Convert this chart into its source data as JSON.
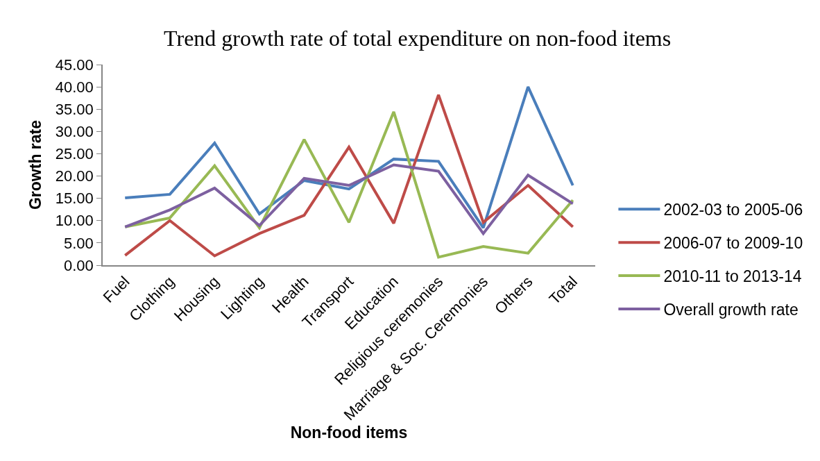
{
  "chart_data": {
    "type": "line",
    "title": "Trend growth rate of total expenditure on non-food items",
    "xlabel": "Non-food items",
    "ylabel": "Growth rate",
    "categories": [
      "Fuel",
      "Clothing",
      "Housing",
      "Lighting",
      "Health",
      "Transport",
      "Education",
      "Religious ceremonies",
      "Marriage & Soc. Ceremonies",
      "Others",
      "Total"
    ],
    "series": [
      {
        "name": "2002-03 to 2005-06",
        "color": "#4a7ebb",
        "values": [
          15.1,
          15.9,
          27.4,
          11.5,
          19.0,
          17.1,
          23.8,
          23.3,
          8.4,
          40.0,
          17.9
        ]
      },
      {
        "name": "2006-07 to 2009-10",
        "color": "#be4b48",
        "values": [
          2.2,
          10.0,
          2.1,
          7.1,
          11.2,
          26.5,
          9.4,
          38.2,
          9.6,
          17.9,
          8.6
        ]
      },
      {
        "name": "2010-11 to 2013-14",
        "color": "#98b954",
        "values": [
          8.6,
          10.6,
          22.3,
          8.4,
          28.2,
          9.6,
          34.4,
          1.8,
          4.2,
          2.7,
          14.6
        ]
      },
      {
        "name": "Overall growth rate",
        "color": "#7d60a0",
        "values": [
          8.6,
          12.4,
          17.3,
          8.9,
          19.5,
          17.9,
          22.5,
          21.1,
          7.1,
          20.2,
          13.8
        ]
      }
    ],
    "ylim": [
      0,
      45
    ],
    "yticks": [
      {
        "value": 0,
        "label": "0.00"
      },
      {
        "value": 5,
        "label": "5.00"
      },
      {
        "value": 10,
        "label": "10.00"
      },
      {
        "value": 15,
        "label": "15.00"
      },
      {
        "value": 20,
        "label": "20.00"
      },
      {
        "value": 25,
        "label": "25.00"
      },
      {
        "value": 30,
        "label": "30.00"
      },
      {
        "value": 35,
        "label": "35.00"
      },
      {
        "value": 40,
        "label": "40.00"
      },
      {
        "value": 45,
        "label": "45.00"
      }
    ],
    "grid": false,
    "legend": "right",
    "marker": "none",
    "line_style": "solid"
  }
}
